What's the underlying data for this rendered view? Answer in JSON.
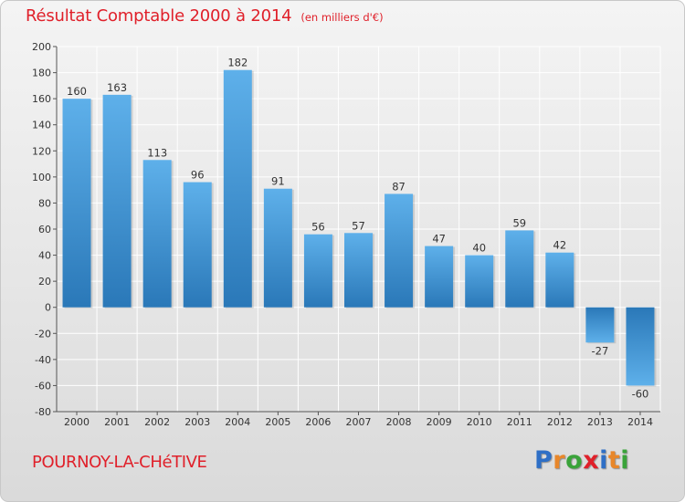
{
  "header": {
    "title": "Résultat Comptable 2000 à 2014",
    "subtitle": "(en milliers d'€)"
  },
  "footer": {
    "town": "POURNOY-LA-CHéTIVE",
    "logo_text": "Proxiti",
    "logo_colors": [
      "#2e6fc6",
      "#e8872a",
      "#3aa33a",
      "#e0202a",
      "#2e6fc6",
      "#e8872a",
      "#3aa33a"
    ]
  },
  "chart_data": {
    "type": "bar",
    "title": "Résultat Comptable 2000 à 2014",
    "subtitle": "(en milliers d'€)",
    "xlabel": "",
    "ylabel": "",
    "categories": [
      "2000",
      "2001",
      "2002",
      "2003",
      "2004",
      "2005",
      "2006",
      "2007",
      "2008",
      "2009",
      "2010",
      "2011",
      "2012",
      "2013",
      "2014"
    ],
    "values": [
      160,
      163,
      113,
      96,
      182,
      91,
      56,
      57,
      87,
      47,
      40,
      59,
      42,
      -27,
      -60
    ],
    "ylim": [
      -80,
      200
    ],
    "yticks": [
      -80,
      -60,
      -40,
      -20,
      0,
      20,
      40,
      60,
      80,
      100,
      120,
      140,
      160,
      180,
      200
    ],
    "grid": true,
    "legend": "none",
    "colors": {
      "bar_top": "#5eb0ea",
      "bar_bottom": "#2a78b8",
      "grid": "#ffffff",
      "axis": "#555555",
      "text": "#333333"
    }
  }
}
